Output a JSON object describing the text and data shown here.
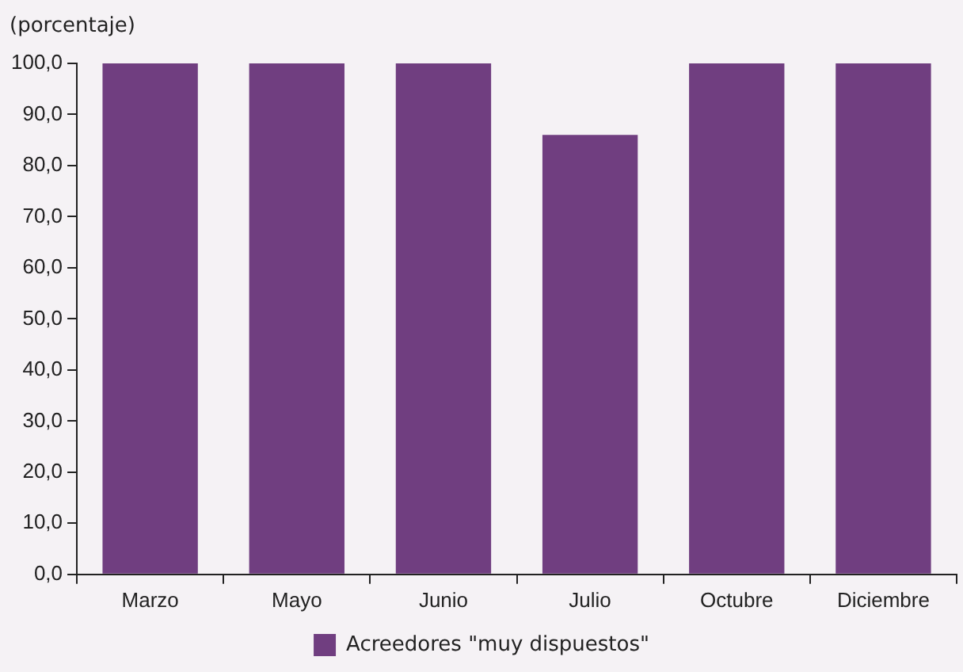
{
  "chart_data": {
    "type": "bar",
    "ylabel": "(porcentaje)",
    "categories": [
      "Marzo",
      "Mayo",
      "Junio",
      "Julio",
      "Octubre",
      "Diciembre"
    ],
    "series": [
      {
        "name": "Acreedores \"muy dispuestos\"",
        "color": "#703e80",
        "values": [
          100,
          100,
          100,
          86,
          100,
          100
        ]
      }
    ],
    "ylim": [
      0,
      100
    ],
    "yticks": [
      {
        "value": 0,
        "label": "0,0"
      },
      {
        "value": 10,
        "label": "10,0"
      },
      {
        "value": 20,
        "label": "20,0"
      },
      {
        "value": 30,
        "label": "30,0"
      },
      {
        "value": 40,
        "label": "40,0"
      },
      {
        "value": 50,
        "label": "50,0"
      },
      {
        "value": 60,
        "label": "60,0"
      },
      {
        "value": 70,
        "label": "70,0"
      },
      {
        "value": 80,
        "label": "80,0"
      },
      {
        "value": 90,
        "label": "90,0"
      },
      {
        "value": 100,
        "label": "100,0"
      }
    ],
    "grid": false,
    "legend": "bottom"
  }
}
